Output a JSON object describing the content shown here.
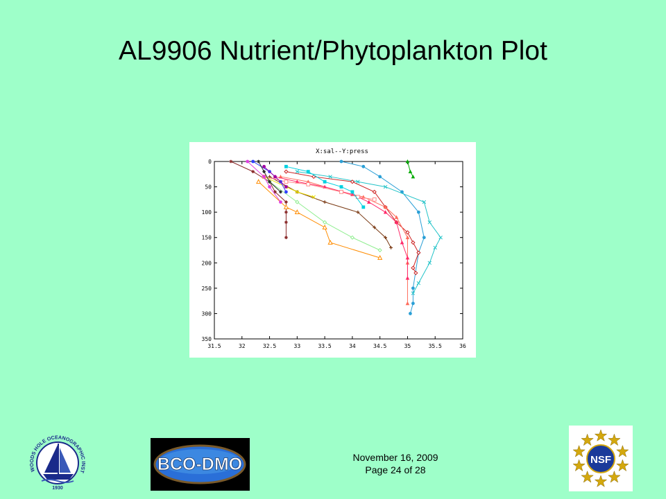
{
  "slide": {
    "title": "AL9906 Nutrient/Phytoplankton Plot",
    "date": "November 16, 2009",
    "page": "Page 24 of 28"
  },
  "logos": {
    "whoi": {
      "text": "WOODS HOLE OCEANOGRAPHIC INSTITUTION",
      "year": "1930"
    },
    "bcodmo": {
      "text": "BCO-DMO"
    },
    "nsf": {
      "text": "NSF"
    }
  },
  "chart_data": {
    "type": "line",
    "title": "X:sal--Y:press",
    "xlabel": "",
    "ylabel": "",
    "xlim": [
      31.5,
      36
    ],
    "ylim": [
      0,
      350
    ],
    "y_inverted": true,
    "grid": false,
    "x_ticks": [
      "31.5",
      "32",
      "32.5",
      "33",
      "33.5",
      "34",
      "34.5",
      "35",
      "35.5",
      "36"
    ],
    "y_ticks": [
      "0",
      "50",
      "100",
      "150",
      "200",
      "250",
      "300",
      "350"
    ],
    "series": [
      {
        "color": "#2a9fd6",
        "marker": "circle",
        "points": [
          [
            33.8,
            0
          ],
          [
            34.2,
            10
          ],
          [
            34.5,
            30
          ],
          [
            34.9,
            60
          ],
          [
            35.2,
            100
          ],
          [
            35.3,
            150
          ],
          [
            35.2,
            180
          ],
          [
            35.1,
            250
          ],
          [
            35.1,
            280
          ],
          [
            35.05,
            300
          ]
        ]
      },
      {
        "color": "#22c3c8",
        "marker": "x",
        "points": [
          [
            33.0,
            20
          ],
          [
            33.6,
            30
          ],
          [
            34.1,
            40
          ],
          [
            34.6,
            50
          ],
          [
            35.3,
            80
          ],
          [
            35.4,
            120
          ],
          [
            35.6,
            150
          ],
          [
            35.5,
            170
          ],
          [
            35.4,
            200
          ],
          [
            35.2,
            240
          ],
          [
            35.1,
            260
          ]
        ]
      },
      {
        "color": "#cc2020",
        "marker": "diamond",
        "points": [
          [
            32.8,
            20
          ],
          [
            33.3,
            30
          ],
          [
            34.0,
            40
          ],
          [
            34.4,
            60
          ],
          [
            34.6,
            90
          ],
          [
            34.8,
            120
          ],
          [
            35.0,
            140
          ],
          [
            35.1,
            160
          ],
          [
            35.2,
            180
          ],
          [
            35.1,
            210
          ],
          [
            35.15,
            220
          ]
        ]
      },
      {
        "color": "#ff6c5c",
        "marker": "triangle",
        "points": [
          [
            32.7,
            30
          ],
          [
            33.2,
            40
          ],
          [
            33.8,
            60
          ],
          [
            34.2,
            70
          ],
          [
            34.6,
            90
          ],
          [
            34.8,
            110
          ],
          [
            35.0,
            150
          ],
          [
            35.0,
            200
          ],
          [
            35.0,
            280
          ]
        ]
      },
      {
        "color": "#ff2a6a",
        "marker": "triangle",
        "points": [
          [
            32.6,
            30
          ],
          [
            33.0,
            40
          ],
          [
            33.5,
            50
          ],
          [
            34.0,
            65
          ],
          [
            34.3,
            80
          ],
          [
            34.6,
            100
          ],
          [
            34.8,
            120
          ],
          [
            34.9,
            160
          ],
          [
            35.0,
            190
          ],
          [
            35.0,
            230
          ]
        ]
      },
      {
        "color": "#7a3a14",
        "marker": "plus",
        "points": [
          [
            32.5,
            30
          ],
          [
            33.0,
            60
          ],
          [
            33.5,
            80
          ],
          [
            34.1,
            100
          ],
          [
            34.4,
            130
          ],
          [
            34.6,
            150
          ],
          [
            34.7,
            170
          ]
        ]
      },
      {
        "color": "#8a2a2a",
        "marker": "star",
        "points": [
          [
            31.8,
            0
          ],
          [
            32.2,
            20
          ],
          [
            32.5,
            40
          ],
          [
            32.6,
            60
          ],
          [
            32.8,
            80
          ],
          [
            32.8,
            100
          ],
          [
            32.8,
            120
          ],
          [
            32.8,
            150
          ]
        ]
      },
      {
        "color": "#ff8a8a",
        "marker": "square-open",
        "points": [
          [
            32.4,
            30
          ],
          [
            32.8,
            40
          ],
          [
            33.2,
            45
          ],
          [
            33.8,
            60
          ],
          [
            34.1,
            70
          ],
          [
            34.4,
            75
          ]
        ]
      },
      {
        "color": "#e8e000",
        "marker": "x",
        "points": [
          [
            32.4,
            30
          ],
          [
            32.8,
            50
          ],
          [
            33.0,
            60
          ],
          [
            33.3,
            70
          ]
        ]
      },
      {
        "color": "#ff8c00",
        "marker": "triangle-open",
        "points": [
          [
            32.3,
            40
          ],
          [
            32.8,
            90
          ],
          [
            33.0,
            100
          ],
          [
            33.5,
            130
          ],
          [
            33.6,
            160
          ],
          [
            34.5,
            190
          ]
        ]
      },
      {
        "color": "#90ee90",
        "marker": "diamond",
        "points": [
          [
            32.5,
            40
          ],
          [
            33.0,
            80
          ],
          [
            33.5,
            120
          ],
          [
            34.0,
            150
          ],
          [
            34.5,
            175
          ]
        ]
      },
      {
        "color": "#00d0e0",
        "marker": "square",
        "points": [
          [
            32.8,
            10
          ],
          [
            33.2,
            20
          ],
          [
            33.5,
            40
          ],
          [
            33.8,
            50
          ],
          [
            34.0,
            60
          ],
          [
            34.2,
            90
          ]
        ]
      },
      {
        "color": "#e040e0",
        "marker": "circle",
        "points": [
          [
            32.1,
            0
          ],
          [
            32.4,
            30
          ],
          [
            32.5,
            50
          ],
          [
            32.7,
            80
          ]
        ]
      },
      {
        "color": "#3040ff",
        "marker": "circle",
        "points": [
          [
            32.2,
            0
          ],
          [
            32.5,
            20
          ],
          [
            32.7,
            40
          ],
          [
            32.8,
            60
          ]
        ]
      },
      {
        "color": "#00aa00",
        "marker": "triangle",
        "points": [
          [
            35.0,
            0
          ],
          [
            35.05,
            20
          ],
          [
            35.1,
            30
          ]
        ]
      },
      {
        "color": "#2a2a2a",
        "marker": "star",
        "points": [
          [
            32.3,
            0
          ],
          [
            32.4,
            20
          ],
          [
            32.5,
            40
          ],
          [
            32.7,
            60
          ]
        ]
      },
      {
        "color": "#a000a0",
        "marker": "circle",
        "points": [
          [
            32.4,
            10
          ],
          [
            32.6,
            30
          ],
          [
            32.8,
            50
          ]
        ]
      }
    ]
  }
}
